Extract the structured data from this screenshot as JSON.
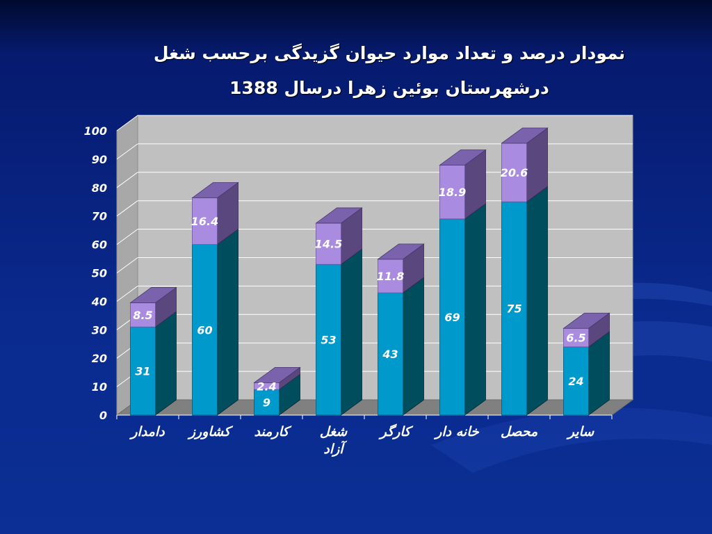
{
  "slide": {
    "title_line1": "نمودار درصد و تعداد موارد حیوان گزیدگی برحسب شغل",
    "title_line2": "درشهرستان بوئین زهرا درسال 1388"
  },
  "colors": {
    "bottom_front": "#0099cc",
    "bottom_side": "#004d5e",
    "top_front": "#a98be0",
    "top_side": "#5a477e",
    "top_cap": "#7a62ad",
    "wall": "#c0c0c0",
    "floor": "#808080"
  },
  "chart_data": {
    "type": "bar",
    "stacked": true,
    "three_d": true,
    "categories": [
      "دامدار",
      "کشاورز",
      "کارمند",
      "شغل آزاد",
      "کارگر",
      "خانه دار",
      "محصل",
      "سایر"
    ],
    "series": [
      {
        "values": [
          31,
          60,
          9,
          53,
          43,
          69,
          75,
          24
        ]
      },
      {
        "values": [
          8.5,
          16.4,
          2.4,
          14.5,
          11.8,
          18.9,
          20.6,
          6.5
        ]
      }
    ],
    "ylim": [
      0,
      100
    ],
    "yticks": [
      0,
      10,
      20,
      30,
      40,
      50,
      60,
      70,
      80,
      90,
      100
    ],
    "grid": true,
    "legend": "none"
  }
}
